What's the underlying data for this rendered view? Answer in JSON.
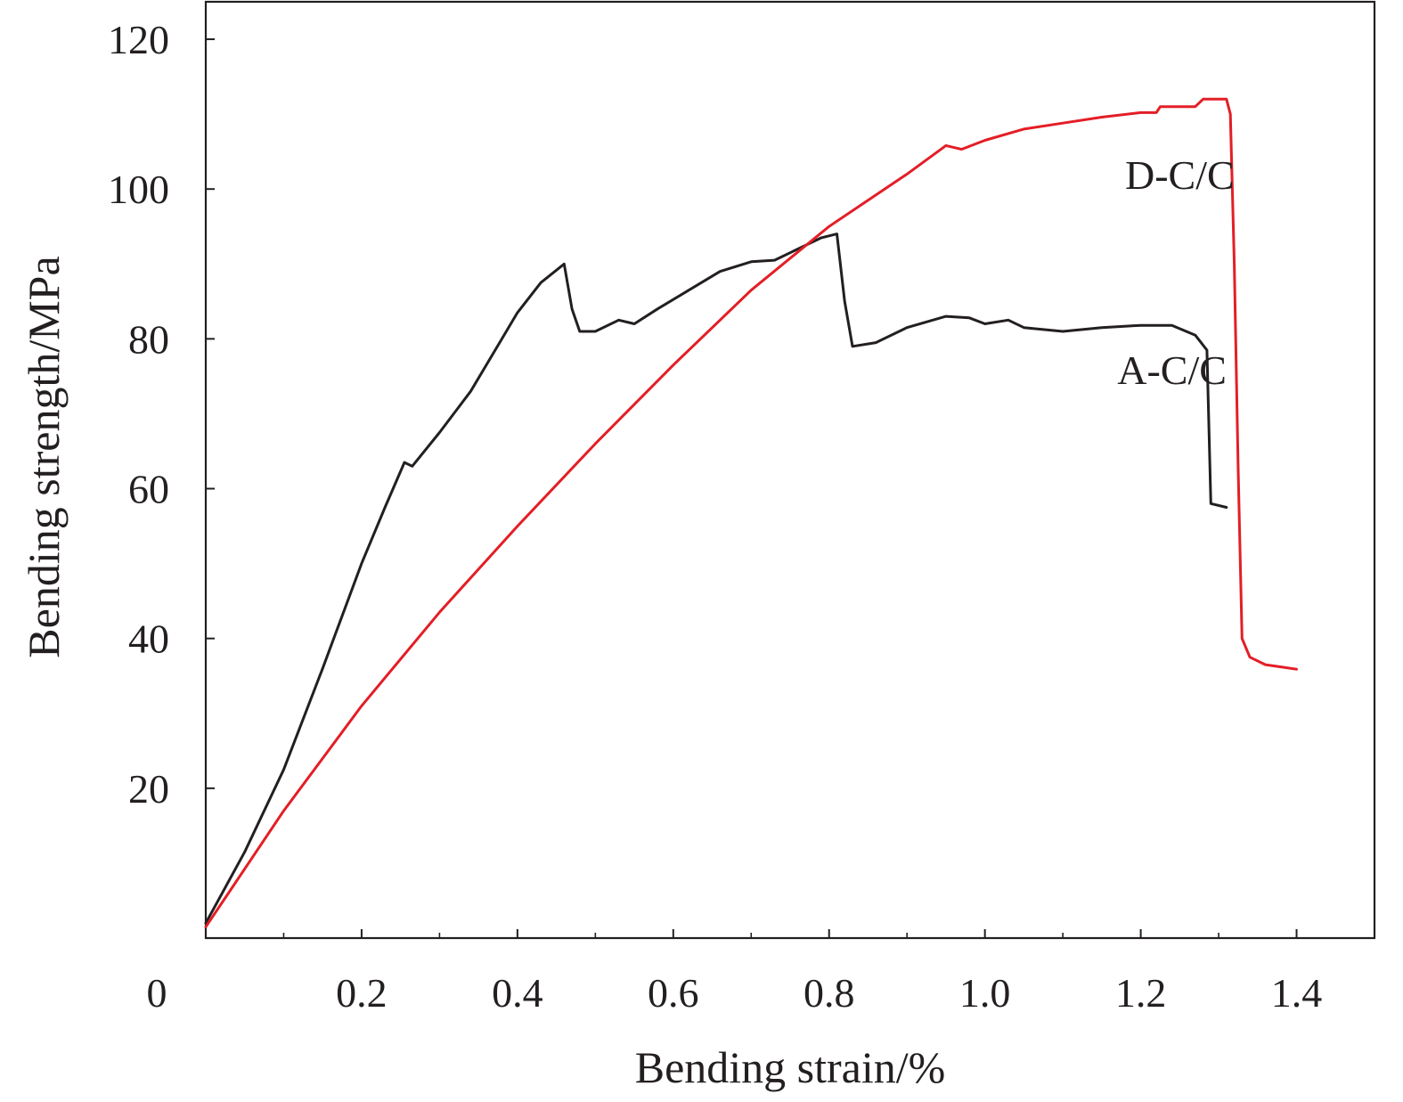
{
  "chart_data": {
    "type": "line",
    "title": "",
    "xlabel": "Bending strain/%",
    "ylabel": "Bending strength/MPa",
    "xlim": [
      0,
      1.5
    ],
    "ylim": [
      0,
      125
    ],
    "origin_label": "0",
    "x_ticks": [
      0.2,
      0.4,
      0.6,
      0.8,
      1.0,
      1.2,
      1.4
    ],
    "x_tick_labels": [
      "0.2",
      "0.4",
      "0.6",
      "0.8",
      "1.0",
      "1.2",
      "1.4"
    ],
    "y_ticks": [
      20,
      40,
      60,
      80,
      100,
      120
    ],
    "y_tick_labels": [
      "20",
      "40",
      "60",
      "80",
      "100",
      "120"
    ],
    "grid": false,
    "legend": "none",
    "series": [
      {
        "name": "A-C/C",
        "color": "#231f20",
        "points": [
          [
            0.0,
            2.0
          ],
          [
            0.05,
            11.5
          ],
          [
            0.1,
            22.5
          ],
          [
            0.15,
            36.0
          ],
          [
            0.2,
            50.0
          ],
          [
            0.23,
            57.5
          ],
          [
            0.255,
            63.5
          ],
          [
            0.265,
            63.0
          ],
          [
            0.3,
            67.5
          ],
          [
            0.34,
            73.0
          ],
          [
            0.38,
            80.0
          ],
          [
            0.4,
            83.5
          ],
          [
            0.43,
            87.5
          ],
          [
            0.46,
            90.0
          ],
          [
            0.47,
            84.0
          ],
          [
            0.48,
            81.0
          ],
          [
            0.5,
            81.0
          ],
          [
            0.53,
            82.5
          ],
          [
            0.55,
            82.0
          ],
          [
            0.58,
            84.0
          ],
          [
            0.62,
            86.5
          ],
          [
            0.66,
            89.0
          ],
          [
            0.7,
            90.3
          ],
          [
            0.73,
            90.5
          ],
          [
            0.76,
            92.0
          ],
          [
            0.79,
            93.5
          ],
          [
            0.81,
            94.0
          ],
          [
            0.82,
            85.0
          ],
          [
            0.83,
            79.0
          ],
          [
            0.86,
            79.5
          ],
          [
            0.9,
            81.5
          ],
          [
            0.95,
            83.0
          ],
          [
            0.98,
            82.8
          ],
          [
            1.0,
            82.0
          ],
          [
            1.03,
            82.5
          ],
          [
            1.05,
            81.5
          ],
          [
            1.1,
            81.0
          ],
          [
            1.15,
            81.5
          ],
          [
            1.2,
            81.8
          ],
          [
            1.24,
            81.8
          ],
          [
            1.27,
            80.5
          ],
          [
            1.285,
            78.5
          ],
          [
            1.29,
            58.0
          ],
          [
            1.31,
            57.5
          ]
        ]
      },
      {
        "name": "D-C/C",
        "color": "#e31e26",
        "points": [
          [
            0.0,
            1.5
          ],
          [
            0.1,
            17.0
          ],
          [
            0.2,
            31.0
          ],
          [
            0.3,
            43.5
          ],
          [
            0.4,
            55.0
          ],
          [
            0.5,
            66.0
          ],
          [
            0.6,
            76.5
          ],
          [
            0.7,
            86.5
          ],
          [
            0.8,
            95.0
          ],
          [
            0.85,
            98.5
          ],
          [
            0.9,
            102.0
          ],
          [
            0.95,
            105.8
          ],
          [
            0.97,
            105.3
          ],
          [
            1.0,
            106.5
          ],
          [
            1.05,
            108.0
          ],
          [
            1.1,
            108.8
          ],
          [
            1.15,
            109.6
          ],
          [
            1.2,
            110.2
          ],
          [
            1.22,
            110.2
          ],
          [
            1.225,
            111.0
          ],
          [
            1.27,
            111.0
          ],
          [
            1.28,
            112.0
          ],
          [
            1.31,
            112.0
          ],
          [
            1.315,
            110.0
          ],
          [
            1.32,
            90.0
          ],
          [
            1.325,
            63.0
          ],
          [
            1.33,
            40.0
          ],
          [
            1.34,
            37.5
          ],
          [
            1.36,
            36.5
          ],
          [
            1.38,
            36.2
          ],
          [
            1.4,
            35.9
          ]
        ]
      }
    ]
  }
}
